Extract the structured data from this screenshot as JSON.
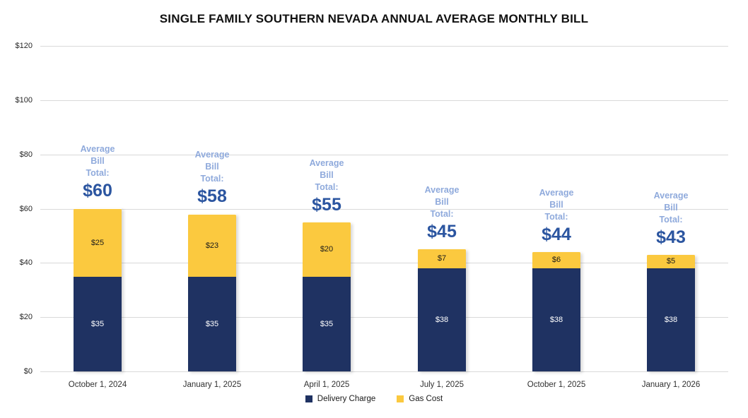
{
  "chart_data": {
    "type": "bar",
    "stacked": true,
    "title": "SINGLE FAMILY SOUTHERN NEVADA ANNUAL AVERAGE MONTHLY BILL",
    "categories": [
      "October 1, 2024",
      "January 1, 2025",
      "April 1, 2025",
      "July 1, 2025",
      "October 1, 2025",
      "January 1, 2026"
    ],
    "series": [
      {
        "name": "Delivery Charge",
        "color": "#1F3262",
        "values": [
          35,
          35,
          35,
          38,
          38,
          38
        ],
        "data_labels": [
          "$35",
          "$35",
          "$35",
          "$38",
          "$38",
          "$38"
        ],
        "label_color": "#FFFFFF"
      },
      {
        "name": "Gas Cost",
        "color": "#FBC93F",
        "values": [
          25,
          23,
          20,
          7,
          6,
          5
        ],
        "data_labels": [
          "$25",
          "$23",
          "$20",
          "$7",
          "$6",
          "$5"
        ],
        "label_color": "#1A1A1A"
      }
    ],
    "totals": {
      "heading_lines": [
        "Average",
        "Bill",
        "Total:"
      ],
      "heading_color": "#8FAADC",
      "labels": [
        "$60",
        "$58",
        "$55",
        "$45",
        "$44",
        "$43"
      ],
      "label_color": "#2B55A0"
    },
    "y_axis": {
      "min": 0,
      "max": 120,
      "step": 20,
      "tick_labels": [
        "$0",
        "$20",
        "$40",
        "$60",
        "$80",
        "$100",
        "$120"
      ]
    },
    "grid": true,
    "gridline_color": "#D9D9D9",
    "legend": {
      "position": "bottom",
      "items": [
        {
          "label": "Delivery Charge",
          "color": "#1F3262"
        },
        {
          "label": "Gas Cost",
          "color": "#FBC93F"
        }
      ]
    }
  }
}
